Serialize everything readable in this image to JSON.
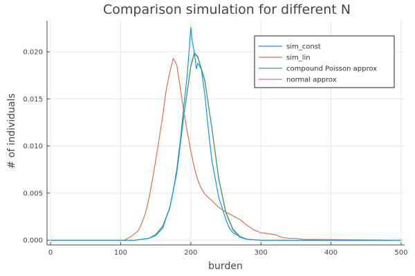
{
  "chart_data": {
    "type": "line",
    "title": "Comparison simulation for different N",
    "xlabel": "burden",
    "ylabel": "# of individuals",
    "xlim": [
      -5,
      505
    ],
    "ylim": [
      -0.0005,
      0.0233
    ],
    "xticks": [
      0,
      100,
      200,
      300,
      400,
      500
    ],
    "yticks": [
      0.0,
      0.005,
      0.01,
      0.015,
      0.02
    ],
    "xtick_labels": [
      "0",
      "100",
      "200",
      "300",
      "400",
      "500"
    ],
    "ytick_labels": [
      "0.000",
      "0.005",
      "0.010",
      "0.015",
      "0.020"
    ],
    "grid": true,
    "legend_position": "top-right",
    "series": [
      {
        "name": "sim_const",
        "color": "#009AFA",
        "x": [
          0,
          120,
          140,
          150,
          160,
          170,
          175,
          180,
          185,
          190,
          195,
          198,
          200,
          202,
          205,
          208,
          210,
          215,
          220,
          225,
          230,
          235,
          240,
          245,
          250,
          255,
          260,
          265,
          270,
          275,
          280,
          300,
          500
        ],
        "y": [
          0,
          0,
          0.0002,
          0.0005,
          0.0013,
          0.0035,
          0.0052,
          0.0075,
          0.0105,
          0.0142,
          0.0176,
          0.0205,
          0.0226,
          0.0212,
          0.0199,
          0.0182,
          0.0188,
          0.0182,
          0.0155,
          0.0118,
          0.0085,
          0.0065,
          0.0045,
          0.0034,
          0.0022,
          0.0013,
          0.0008,
          0.0006,
          0.0004,
          0.0002,
          0.0001,
          0,
          0
        ]
      },
      {
        "name": "sim_lin",
        "color": "#E26F46",
        "x": [
          0,
          105,
          115,
          125,
          130,
          135,
          140,
          145,
          150,
          155,
          160,
          165,
          170,
          175,
          180,
          185,
          190,
          195,
          200,
          205,
          210,
          215,
          220,
          230,
          240,
          250,
          260,
          270,
          280,
          290,
          300,
          310,
          320,
          330,
          340,
          350,
          360,
          500
        ],
        "y": [
          0,
          0,
          0.0004,
          0.001,
          0.0018,
          0.0028,
          0.0043,
          0.0063,
          0.0085,
          0.0108,
          0.0132,
          0.016,
          0.0178,
          0.0193,
          0.0186,
          0.0162,
          0.0137,
          0.0115,
          0.0095,
          0.0077,
          0.0064,
          0.0055,
          0.0049,
          0.0042,
          0.0035,
          0.003,
          0.0026,
          0.0022,
          0.0016,
          0.0011,
          0.0008,
          0.0007,
          0.0006,
          0.0003,
          0.0002,
          0.0002,
          0.0001,
          0
        ]
      },
      {
        "name": "compound Poisson approx",
        "color": "#3DA44D",
        "x": [
          0,
          120,
          140,
          150,
          160,
          170,
          180,
          190,
          200,
          205,
          210,
          220,
          230,
          240,
          250,
          260,
          270,
          280,
          300,
          500
        ],
        "y": [
          0,
          0,
          0.0002,
          0.0006,
          0.0015,
          0.0034,
          0.0072,
          0.0132,
          0.0185,
          0.0199,
          0.0195,
          0.017,
          0.012,
          0.0065,
          0.003,
          0.0012,
          0.0004,
          0.0001,
          0,
          0
        ]
      },
      {
        "name": "normal approx",
        "color": "#C271D2",
        "x": [
          0,
          120,
          140,
          150,
          160,
          170,
          180,
          190,
          200,
          205,
          210,
          220,
          230,
          240,
          250,
          260,
          270,
          280,
          300,
          500
        ],
        "y": [
          0,
          0,
          0.0002,
          0.0006,
          0.0015,
          0.0034,
          0.0071,
          0.0131,
          0.0184,
          0.0198,
          0.0194,
          0.0169,
          0.0119,
          0.0064,
          0.0029,
          0.0011,
          0.0003,
          0.0001,
          0,
          0
        ]
      }
    ]
  }
}
